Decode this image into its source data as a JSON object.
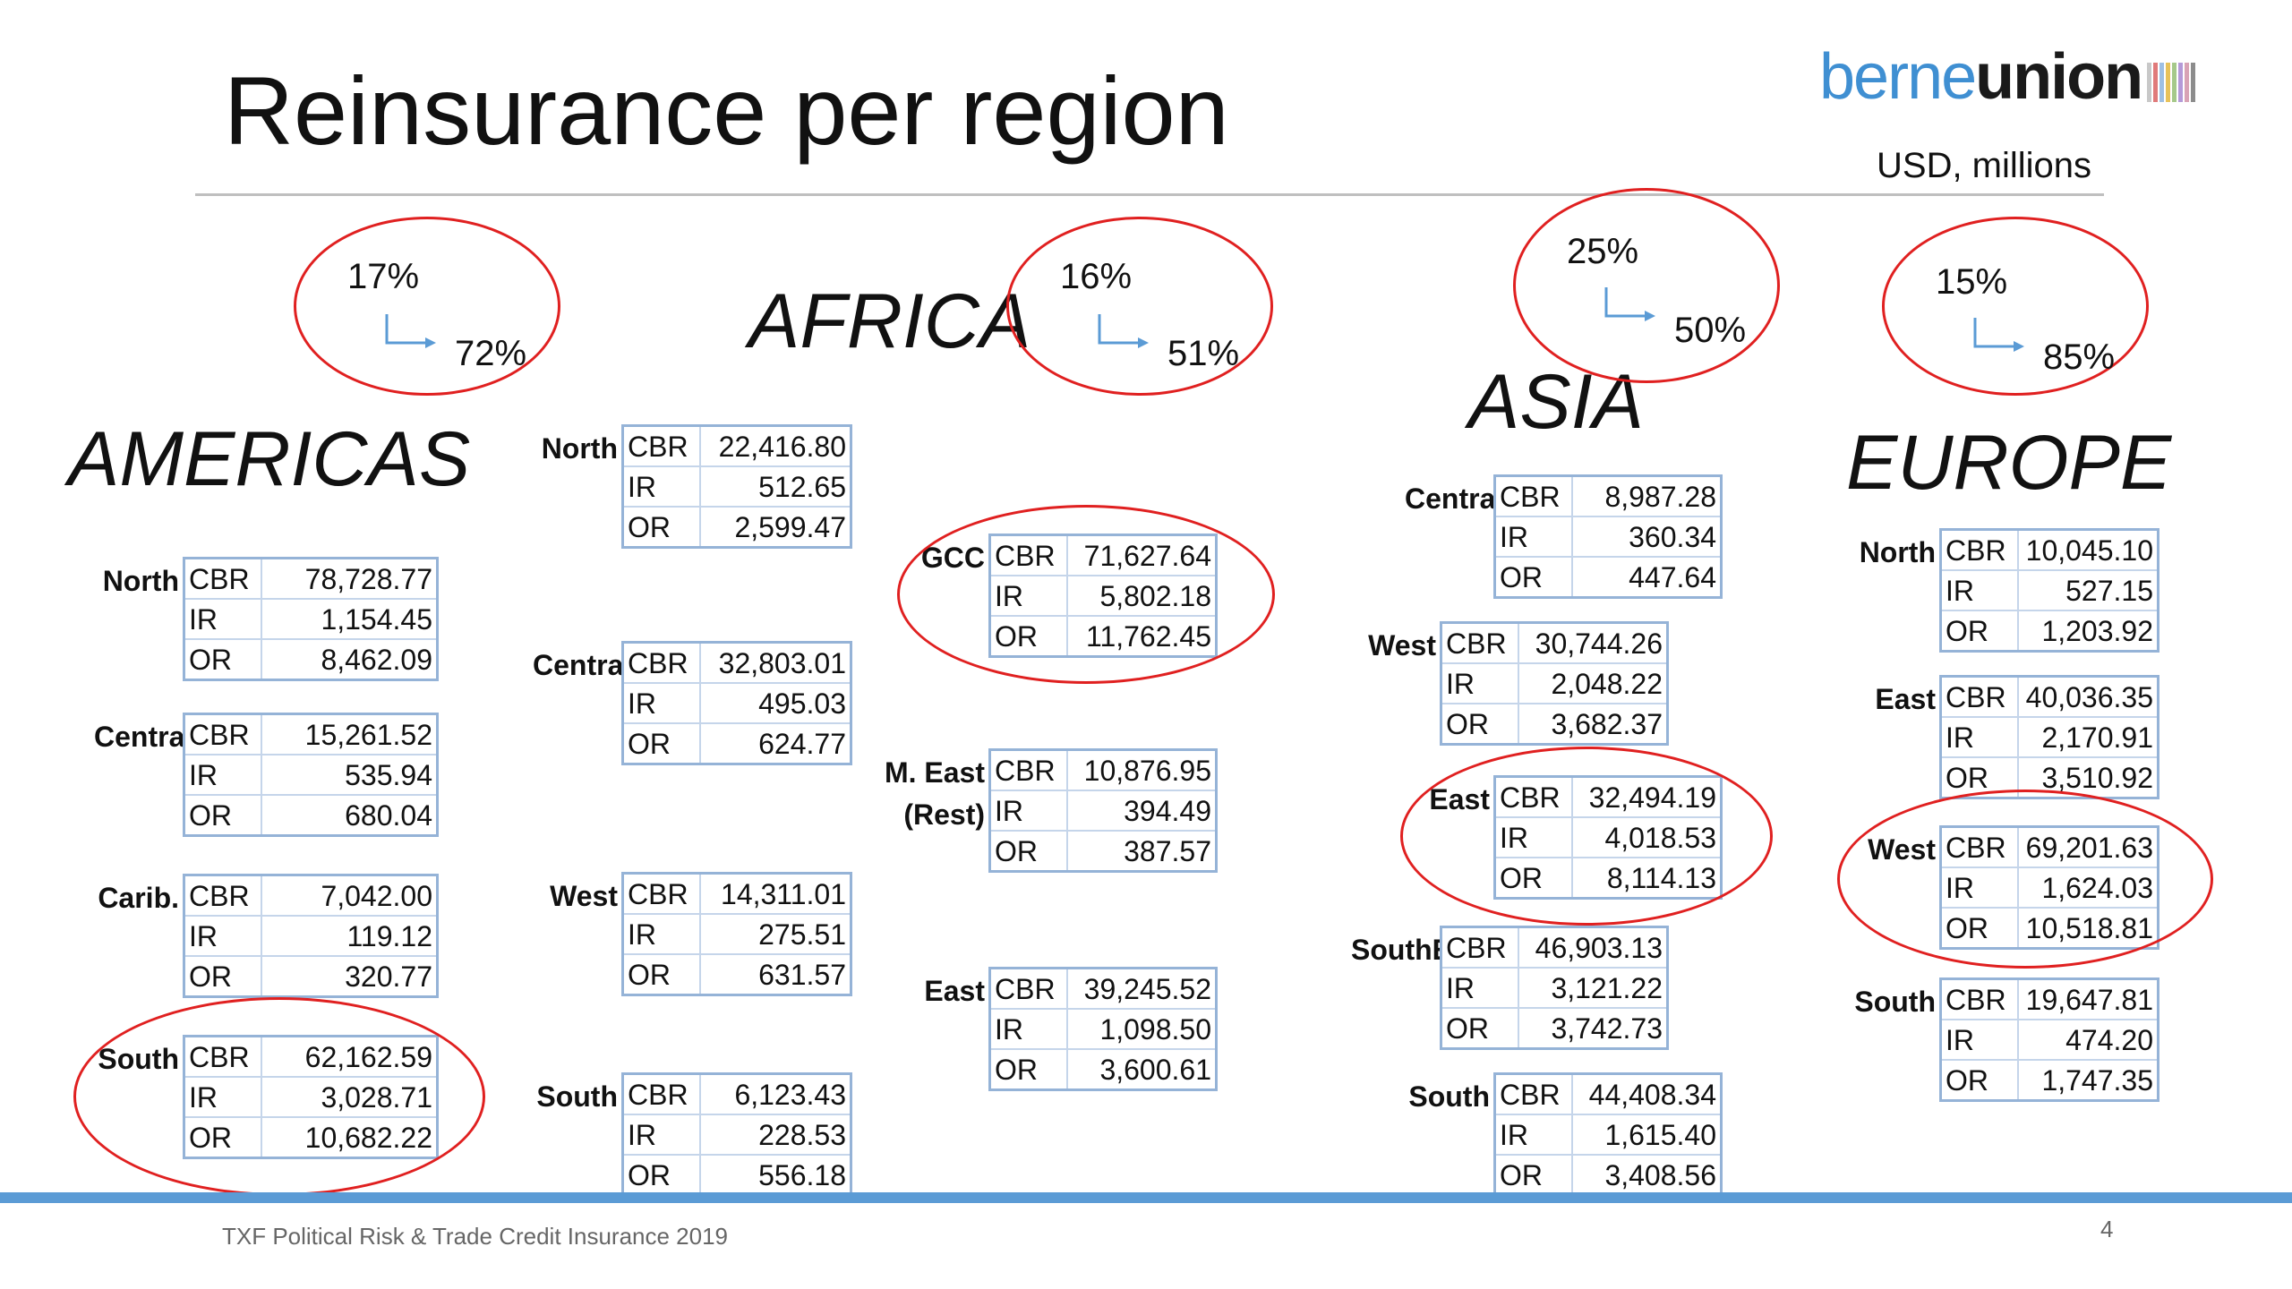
{
  "title": "Reinsurance per region",
  "unit": "USD, millions",
  "logo": {
    "part1": "berne",
    "part2": "union",
    "stripe_colors": [
      "#c8c8c8",
      "#e07a7a",
      "#9ec0e4",
      "#e8c25a",
      "#a6c98a",
      "#b59ad8",
      "#d9a3b5",
      "#8c8c8c"
    ]
  },
  "footer": "TXF Political Risk & Trade Credit Insurance 2019",
  "page_number": "4",
  "regions": {
    "americas": "AMERICAS",
    "africa": "AFRICA",
    "asia": "ASIA",
    "europe": "EUROPE"
  },
  "shares": {
    "americas": {
      "from": "17%",
      "to": "72%"
    },
    "africa": {
      "from": "16%",
      "to": "51%"
    },
    "asia": {
      "from": "25%",
      "to": "50%"
    },
    "europe": {
      "from": "15%",
      "to": "85%"
    }
  },
  "tables": [
    {
      "label": "North",
      "rows": [
        [
          "CBR",
          "78,728.77"
        ],
        [
          "IR",
          "1,154.45"
        ],
        [
          "OR",
          "8,462.09"
        ]
      ]
    },
    {
      "label": "Central",
      "rows": [
        [
          "CBR",
          "15,261.52"
        ],
        [
          "IR",
          "535.94"
        ],
        [
          "OR",
          "680.04"
        ]
      ]
    },
    {
      "label": "Carib.",
      "rows": [
        [
          "CBR",
          "7,042.00"
        ],
        [
          "IR",
          "119.12"
        ],
        [
          "OR",
          "320.77"
        ]
      ]
    },
    {
      "label": "South",
      "rows": [
        [
          "CBR",
          "62,162.59"
        ],
        [
          "IR",
          "3,028.71"
        ],
        [
          "OR",
          "10,682.22"
        ]
      ]
    },
    {
      "label": "North",
      "rows": [
        [
          "CBR",
          "22,416.80"
        ],
        [
          "IR",
          "512.65"
        ],
        [
          "OR",
          "2,599.47"
        ]
      ]
    },
    {
      "label": "Central",
      "rows": [
        [
          "CBR",
          "32,803.01"
        ],
        [
          "IR",
          "495.03"
        ],
        [
          "OR",
          "624.77"
        ]
      ]
    },
    {
      "label": "West",
      "rows": [
        [
          "CBR",
          "14,311.01"
        ],
        [
          "IR",
          "275.51"
        ],
        [
          "OR",
          "631.57"
        ]
      ]
    },
    {
      "label": "South",
      "rows": [
        [
          "CBR",
          "6,123.43"
        ],
        [
          "IR",
          "228.53"
        ],
        [
          "OR",
          "556.18"
        ]
      ]
    },
    {
      "label": "GCC",
      "rows": [
        [
          "CBR",
          "71,627.64"
        ],
        [
          "IR",
          "5,802.18"
        ],
        [
          "OR",
          "11,762.45"
        ]
      ]
    },
    {
      "label": "M. East (Rest)",
      "rows": [
        [
          "CBR",
          "10,876.95"
        ],
        [
          "IR",
          "394.49"
        ],
        [
          "OR",
          "387.57"
        ]
      ]
    },
    {
      "label": "East",
      "rows": [
        [
          "CBR",
          "39,245.52"
        ],
        [
          "IR",
          "1,098.50"
        ],
        [
          "OR",
          "3,600.61"
        ]
      ]
    },
    {
      "label": "Central",
      "rows": [
        [
          "CBR",
          "8,987.28"
        ],
        [
          "IR",
          "360.34"
        ],
        [
          "OR",
          "447.64"
        ]
      ]
    },
    {
      "label": "West",
      "rows": [
        [
          "CBR",
          "30,744.26"
        ],
        [
          "IR",
          "2,048.22"
        ],
        [
          "OR",
          "3,682.37"
        ]
      ]
    },
    {
      "label": "East",
      "rows": [
        [
          "CBR",
          "32,494.19"
        ],
        [
          "IR",
          "4,018.53"
        ],
        [
          "OR",
          "8,114.13"
        ]
      ]
    },
    {
      "label": "SouthE.",
      "rows": [
        [
          "CBR",
          "46,903.13"
        ],
        [
          "IR",
          "3,121.22"
        ],
        [
          "OR",
          "3,742.73"
        ]
      ]
    },
    {
      "label": "South",
      "rows": [
        [
          "CBR",
          "44,408.34"
        ],
        [
          "IR",
          "1,615.40"
        ],
        [
          "OR",
          "3,408.56"
        ]
      ]
    },
    {
      "label": "North",
      "rows": [
        [
          "CBR",
          "10,045.10"
        ],
        [
          "IR",
          "527.15"
        ],
        [
          "OR",
          "1,203.92"
        ]
      ]
    },
    {
      "label": "East",
      "rows": [
        [
          "CBR",
          "40,036.35"
        ],
        [
          "IR",
          "2,170.91"
        ],
        [
          "OR",
          "3,510.92"
        ]
      ]
    },
    {
      "label": "West",
      "rows": [
        [
          "CBR",
          "69,201.63"
        ],
        [
          "IR",
          "1,624.03"
        ],
        [
          "OR",
          "10,518.81"
        ]
      ]
    },
    {
      "label": "South",
      "rows": [
        [
          "CBR",
          "19,647.81"
        ],
        [
          "IR",
          "474.20"
        ],
        [
          "OR",
          "1,747.35"
        ]
      ]
    }
  ]
}
